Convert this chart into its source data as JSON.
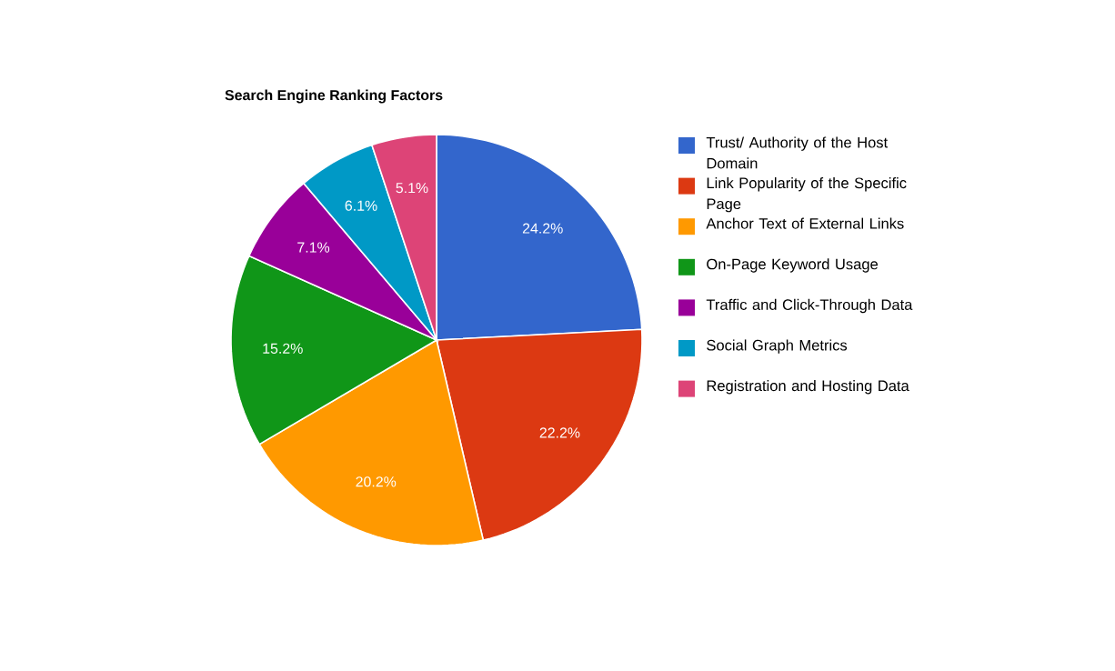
{
  "chart_data": {
    "type": "pie",
    "title": "Search Engine Ranking Factors",
    "categories": [
      "Trust/ Authority of the Host Domain",
      "Link Popularity of the Specific Page",
      "Anchor Text of External Links",
      "On-Page Keyword Usage",
      "Traffic and Click-Through Data",
      "Social Graph Metrics",
      "Registration and Hosting Data"
    ],
    "values": [
      24.2,
      22.2,
      20.2,
      15.2,
      7.1,
      6.1,
      5.1
    ],
    "value_labels": [
      "24.2%",
      "22.2%",
      "20.2%",
      "15.2%",
      "7.1%",
      "6.1%",
      "5.1%"
    ],
    "colors": [
      "#3366cc",
      "#dc3912",
      "#ff9900",
      "#109618",
      "#990099",
      "#0099c6",
      "#dd4477"
    ],
    "legend": "right"
  }
}
